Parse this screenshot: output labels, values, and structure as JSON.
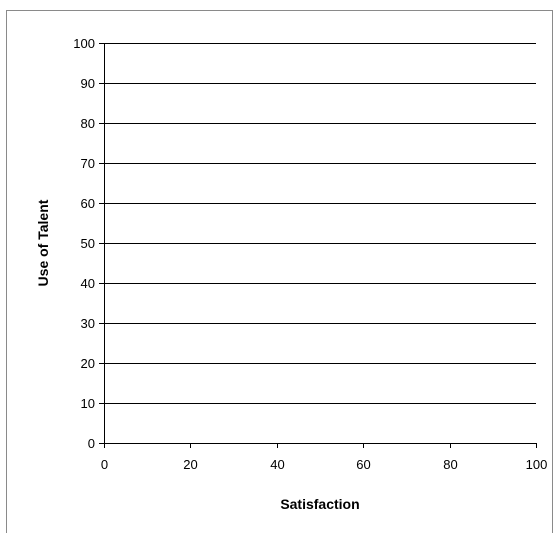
{
  "chart_data": {
    "type": "scatter",
    "title": "",
    "xlabel": "Satisfaction",
    "ylabel": "Use of Talent",
    "xlim": [
      0,
      100
    ],
    "ylim": [
      0,
      100
    ],
    "x_ticks": [
      0,
      20,
      40,
      60,
      80,
      100
    ],
    "y_ticks": [
      0,
      10,
      20,
      30,
      40,
      50,
      60,
      70,
      80,
      90,
      100
    ],
    "grid": {
      "horizontal": true,
      "vertical": false
    },
    "legend": "none",
    "series": [],
    "colors": {
      "gridline": "#000000",
      "axis": "#000000",
      "frame": "#8a8a8a"
    }
  }
}
